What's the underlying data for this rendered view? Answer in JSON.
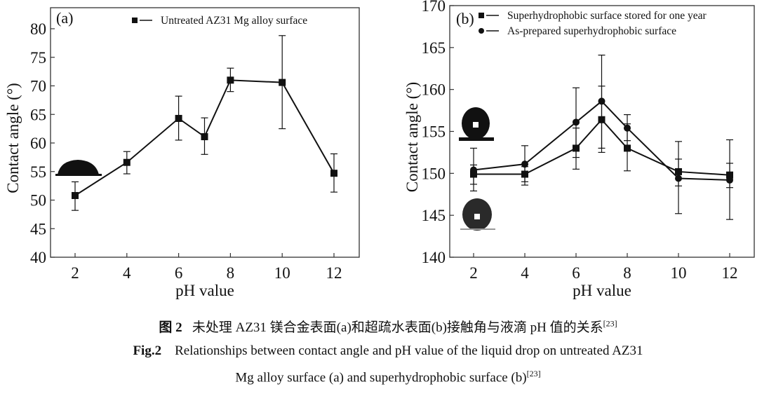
{
  "chart_data": [
    {
      "type": "line",
      "panel_label": "(a)",
      "xlabel": "pH value",
      "ylabel": "Contact angle (°)",
      "xlim": [
        1,
        13
      ],
      "ylim": [
        40,
        83
      ],
      "xticks": [
        2,
        4,
        6,
        8,
        10,
        12
      ],
      "yticks": [
        40,
        45,
        50,
        55,
        60,
        65,
        70,
        75,
        80
      ],
      "grid": false,
      "legend_position": "top-right",
      "series": [
        {
          "name": "Untreated AZ31 Mg alloy surface",
          "marker": "square",
          "x": [
            2,
            4,
            6,
            7,
            8,
            10,
            12
          ],
          "y": [
            50.8,
            56.6,
            64.3,
            61.1,
            71.0,
            70.6,
            54.7
          ],
          "err_low": [
            48.2,
            54.6,
            60.5,
            58.0,
            69.0,
            62.5,
            51.4
          ],
          "err_high": [
            53.2,
            58.5,
            68.2,
            64.4,
            73.1,
            78.8,
            58.1
          ]
        }
      ]
    },
    {
      "type": "line",
      "panel_label": "(b)",
      "xlabel": "pH value",
      "ylabel": "Contact angle (°)",
      "xlim": [
        1,
        13
      ],
      "ylim": [
        140,
        170
      ],
      "xticks": [
        2,
        4,
        6,
        8,
        10,
        12
      ],
      "yticks": [
        140,
        145,
        150,
        155,
        160,
        165,
        170
      ],
      "grid": false,
      "legend_position": "top-right",
      "series": [
        {
          "name": "Superhydrophobic surface stored for one year",
          "marker": "square",
          "x": [
            2,
            4,
            6,
            7,
            8,
            10,
            12
          ],
          "y": [
            149.9,
            149.9,
            153.0,
            156.4,
            153.0,
            150.2,
            149.8
          ],
          "err_low": [
            148.7,
            149.0,
            150.5,
            152.5,
            150.3,
            148.5,
            148.3
          ],
          "err_high": [
            151.0,
            150.8,
            155.4,
            160.4,
            155.9,
            151.7,
            151.2
          ]
        },
        {
          "name": "As-prepared superhydrophobic surface",
          "marker": "circle",
          "x": [
            2,
            4,
            6,
            7,
            8,
            10,
            12
          ],
          "y": [
            150.4,
            151.1,
            156.1,
            158.6,
            155.4,
            149.4,
            149.2
          ],
          "err_low": [
            147.9,
            148.6,
            151.9,
            153.0,
            153.9,
            145.2,
            144.5
          ],
          "err_high": [
            153.0,
            153.3,
            160.2,
            164.1,
            157.0,
            153.8,
            154.0
          ]
        }
      ]
    }
  ],
  "caption": {
    "cn_label": "图 2",
    "cn_text": "未处理 AZ31 镁合金表面(a)和超疏水表面(b)接触角与液滴 pH 值的关系",
    "cn_ref": "[23]",
    "en_label": "Fig.2",
    "en_line1": "Relationships between contact angle and pH value of the liquid drop on untreated AZ31",
    "en_line2": "Mg alloy surface (a) and superhydrophobic surface (b)",
    "en_ref": "[23]"
  },
  "colors": {
    "line": "#111111",
    "background": "#ffffff"
  }
}
